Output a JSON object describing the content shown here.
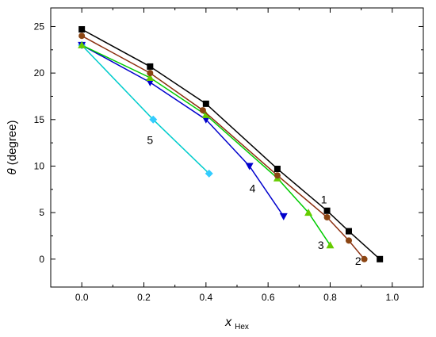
{
  "chart_data": {
    "type": "line",
    "xlabel": {
      "main": "x",
      "sub": "Hex"
    },
    "ylabel": {
      "symbol": "θ",
      "text": "(degree)"
    },
    "xlim": [
      -0.1,
      1.1
    ],
    "ylim": [
      -3,
      27
    ],
    "xticks": [
      0.0,
      0.2,
      0.4,
      0.6,
      0.8,
      1.0
    ],
    "xtick_labels": [
      "0.0",
      "0.2",
      "0.4",
      "0.6",
      "0.8",
      "1.0"
    ],
    "yticks": [
      0,
      5,
      10,
      15,
      20,
      25
    ],
    "ytick_labels": [
      "0",
      "5",
      "10",
      "15",
      "20",
      "25"
    ],
    "grid": false,
    "series": [
      {
        "label": "1",
        "line_color": "#000000",
        "marker_color": "#000000",
        "marker": "square",
        "x": [
          0.0,
          0.22,
          0.4,
          0.63,
          0.79,
          0.86,
          0.96
        ],
        "y": [
          24.7,
          20.7,
          16.7,
          9.7,
          5.2,
          3.0,
          0.0
        ]
      },
      {
        "label": "2",
        "line_color": "#8b2e0e",
        "marker_color": "#8b4513",
        "marker": "circle",
        "x": [
          0.0,
          0.22,
          0.39,
          0.63,
          0.79,
          0.86,
          0.91
        ],
        "y": [
          24.0,
          20.0,
          16.0,
          9.0,
          4.5,
          2.0,
          0.0
        ]
      },
      {
        "label": "3",
        "line_color": "#00cc00",
        "marker_color": "#66cc00",
        "marker": "triangle-up",
        "x": [
          0.0,
          0.22,
          0.4,
          0.63,
          0.73,
          0.8
        ],
        "y": [
          23.0,
          19.5,
          15.5,
          8.7,
          5.0,
          1.5
        ]
      },
      {
        "label": "4",
        "line_color": "#0000cc",
        "marker_color": "#0000cc",
        "marker": "triangle-down",
        "x": [
          0.0,
          0.22,
          0.4,
          0.54,
          0.65
        ],
        "y": [
          23.0,
          19.0,
          15.0,
          10.0,
          4.6
        ]
      },
      {
        "label": "5",
        "line_color": "#00cccc",
        "marker_color": "#33ccff",
        "marker": "diamond",
        "x": [
          0.0,
          0.23,
          0.41
        ],
        "y": [
          23.0,
          15.0,
          9.2
        ]
      }
    ],
    "annotations": [
      {
        "text": "1",
        "x": 0.77,
        "y": 6.0
      },
      {
        "text": "2",
        "x": 0.88,
        "y": -0.6
      },
      {
        "text": "3",
        "x": 0.76,
        "y": 1.1
      },
      {
        "text": "4",
        "x": 0.54,
        "y": 7.2
      },
      {
        "text": "5",
        "x": 0.21,
        "y": 12.4
      }
    ]
  }
}
